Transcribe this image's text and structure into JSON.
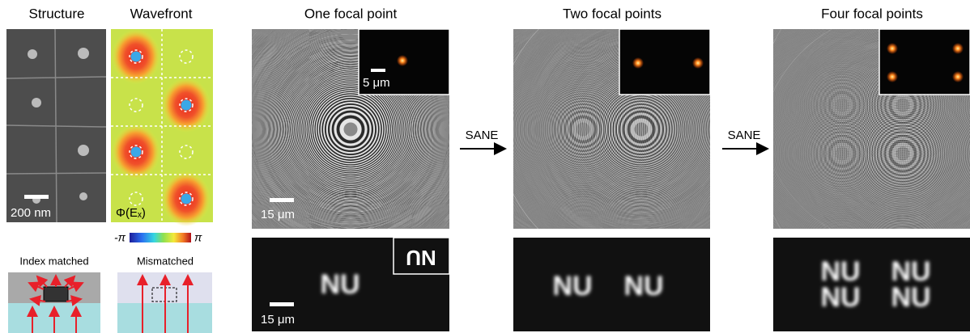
{
  "panels": {
    "structure": {
      "title": "Structure",
      "scale_bar": "200 nm"
    },
    "wavefront": {
      "title": "Wavefront",
      "label": "Φ(Eₓ)",
      "colorbar_min": "-π",
      "colorbar_max": "π"
    }
  },
  "schematics": {
    "index_matched": "Index matched",
    "mismatched": "Mismatched"
  },
  "focal_panels": [
    {
      "title": "One focal point",
      "inset_scale_bar": "5 μm",
      "scale_bar": "15 μm",
      "image_scale_bar": "15 μm",
      "image_text": [
        "NU"
      ],
      "inset_image_text": "NU"
    },
    {
      "title": "Two focal points",
      "image_text": [
        "NU",
        "NU"
      ]
    },
    {
      "title": "Four focal points",
      "image_text": [
        "NU",
        "NU",
        "NU",
        "NU"
      ]
    }
  ],
  "arrows": [
    "SANE",
    "SANE"
  ]
}
